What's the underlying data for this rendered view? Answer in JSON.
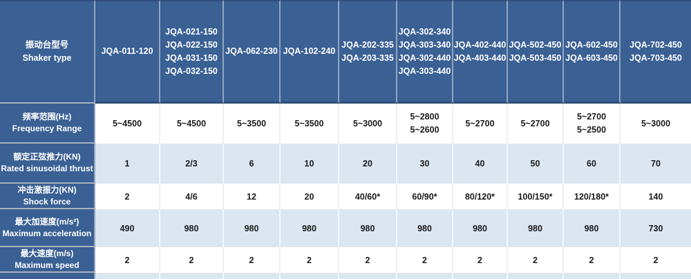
{
  "table": {
    "title": "Shaker specification table",
    "colors": {
      "header_blue": "#3a6094",
      "dark_line": "#2e4d78",
      "light_row_blue": "#dce6f1",
      "white_row": "#ffffff",
      "header_separator": "#93a6bf",
      "label_separator": "#a9b2bd",
      "text_dark": "#1b1b1b",
      "text_white": "#ffffff"
    },
    "header": {
      "label_zh": "振动台型号",
      "label_en": "Shaker type",
      "columns": [
        "JQA-011-120",
        "JQA-021-150\nJQA-022-150\nJQA-031-150\nJQA-032-150",
        "JQA-062-230",
        "JQA-102-240",
        "JQA-202-335\nJQA-203-335",
        "JQA-302-340\nJQA-303-340\nJQA-302-440\nJQA-303-440",
        "JQA-402-440\nJQA-403-440",
        "JQA-502-450\nJQA-503-450",
        "JQA-602-450\nJQA-603-450",
        "JQA-702-450\nJQA-703-450"
      ]
    },
    "rows": [
      {
        "label_zh": "频率范围(Hz)",
        "label_en": "Frequency Range",
        "values": [
          "5~4500",
          "5~4500",
          "5~3500",
          "5~3500",
          "5~3000",
          "5~2800\n5~2600",
          "5~2700",
          "5~2700",
          "5~2700\n5~2500",
          "5~3000"
        ]
      },
      {
        "label_zh": "额定正弦推力(KN)",
        "label_en": "Rated sinusoidal thrust",
        "values": [
          "1",
          "2/3",
          "6",
          "10",
          "20",
          "30",
          "40",
          "50",
          "60",
          "70"
        ]
      },
      {
        "label_zh": "冲击激振力(KN)",
        "label_en": "Shock force",
        "values": [
          "2",
          "4/6",
          "12",
          "20",
          "40/60*",
          "60/90*",
          "80/120*",
          "100/150*",
          "120/180*",
          "140"
        ]
      },
      {
        "label_zh": "最大加速度(m/s²)",
        "label_en": "Maximum acceleration",
        "values": [
          "490",
          "980",
          "980",
          "980",
          "980",
          "980",
          "980",
          "980",
          "980",
          "730"
        ]
      },
      {
        "label_zh": "最大速度(m/s)",
        "label_en": "Maximum speed",
        "values": [
          "2",
          "2",
          "2",
          "2",
          "2",
          "2",
          "2",
          "2",
          "2",
          "2"
        ]
      }
    ]
  }
}
